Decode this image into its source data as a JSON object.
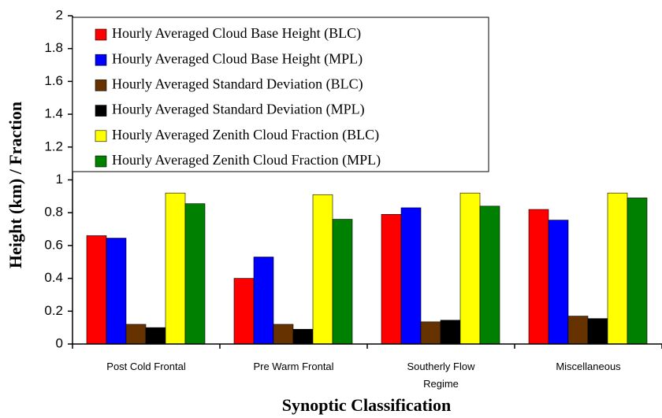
{
  "chart_data": {
    "type": "bar",
    "y_label": "Height (km) / Fraction",
    "x_label": "Synoptic Classification",
    "categories": [
      "Post Cold Frontal",
      "Pre Warm Frontal",
      "Southerly Flow Regime",
      "Miscellaneous"
    ],
    "series": [
      {
        "name": "Hourly Averaged Cloud Base Height (BLC)",
        "color": "#ff0000",
        "values": [
          0.66,
          0.4,
          0.79,
          0.82
        ]
      },
      {
        "name": "Hourly Averaged Cloud Base Height (MPL)",
        "color": "#0000ff",
        "values": [
          0.645,
          0.53,
          0.83,
          0.755
        ]
      },
      {
        "name": "Hourly Averaged Standard Deviation (BLC)",
        "color": "#663300",
        "values": [
          0.12,
          0.12,
          0.135,
          0.17
        ]
      },
      {
        "name": "Hourly Averaged Standard Deviation (MPL)",
        "color": "#000000",
        "values": [
          0.1,
          0.09,
          0.145,
          0.155
        ]
      },
      {
        "name": "Hourly Averaged Zenith Cloud Fraction (BLC)",
        "color": "#ffff00",
        "values": [
          0.92,
          0.91,
          0.92,
          0.92
        ]
      },
      {
        "name": "Hourly Averaged Zenith Cloud Fraction (MPL)",
        "color": "#008000",
        "values": [
          0.855,
          0.76,
          0.84,
          0.89
        ]
      }
    ],
    "ylim": [
      0,
      2
    ],
    "yticks": [
      0,
      0.2,
      0.4,
      0.6,
      0.8,
      1,
      1.2,
      1.4,
      1.6,
      1.8,
      2
    ],
    "grid": false
  }
}
